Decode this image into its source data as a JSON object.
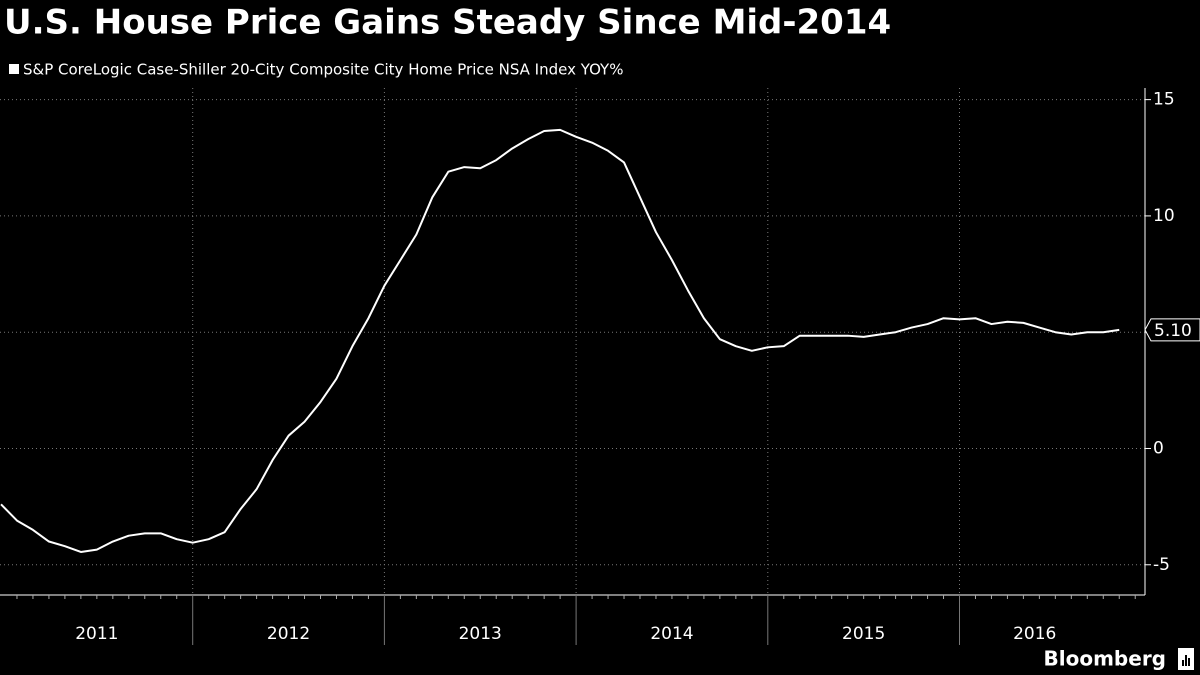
{
  "chart_data": {
    "type": "line",
    "title": "U.S. House Price Gains Steady Since Mid-2014",
    "series": [
      {
        "name": "S&P CoreLogic Case-Shiller 20-City Composite City Home Price NSA Index YOY%",
        "color": "#ffffff",
        "values": [
          -2.4,
          -3.1,
          -3.5,
          -4.0,
          -4.2,
          -4.45,
          -4.35,
          -4.0,
          -3.75,
          -3.65,
          -3.65,
          -3.9,
          -4.05,
          -3.9,
          -3.6,
          -2.6,
          -1.75,
          -0.5,
          0.55,
          1.15,
          2.0,
          3.0,
          4.4,
          5.6,
          7.0,
          8.1,
          9.2,
          10.8,
          11.9,
          12.1,
          12.05,
          12.4,
          12.9,
          13.3,
          13.65,
          13.7,
          13.4,
          13.15,
          12.8,
          12.3,
          10.8,
          9.3,
          8.1,
          6.8,
          5.6,
          4.7,
          4.4,
          4.2,
          4.35,
          4.4,
          4.85,
          4.85,
          4.85,
          4.85,
          4.8,
          4.9,
          5.0,
          5.2,
          5.35,
          5.6,
          5.55,
          5.6,
          5.35,
          5.45,
          5.4,
          5.2,
          5.0,
          4.9,
          5.0,
          5.0,
          5.1
        ]
      }
    ],
    "last_value_label": "5.10",
    "x_labels": [
      "2011",
      "2012",
      "2013",
      "2014",
      "2015",
      "2016"
    ],
    "ylim": [
      -6.3,
      15.5
    ],
    "yticks": [
      -5,
      0,
      5,
      10,
      15
    ],
    "grid": true,
    "source": "Bloomberg"
  }
}
